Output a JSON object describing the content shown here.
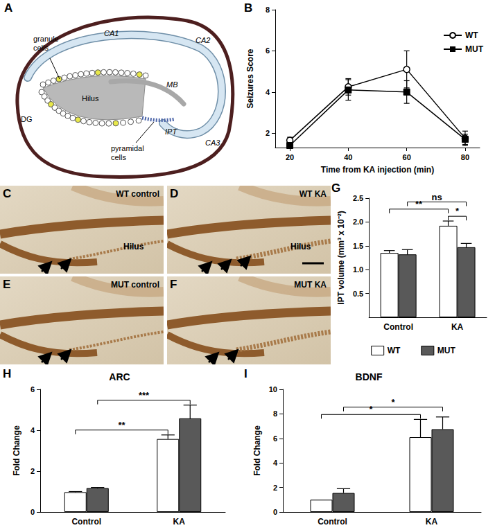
{
  "diagram": {
    "panel": "A",
    "labels": [
      "CA1",
      "CA2",
      "CA3",
      "granule cells",
      "Hilus",
      "MB",
      "DG",
      "IPT",
      "pyramidal cells"
    ]
  },
  "micrographs": [
    {
      "panel": "C",
      "label": "WT control",
      "region": "Hilus"
    },
    {
      "panel": "D",
      "label": "WT KA",
      "region": "Hilus"
    },
    {
      "panel": "E",
      "label": "MUT control"
    },
    {
      "panel": "F",
      "label": "MUT KA"
    }
  ],
  "chart_data": [
    {
      "panel": "B",
      "type": "line",
      "xlabel": "Time from KA injection (min)",
      "ylabel": "Seizures Score",
      "x": [
        20,
        40,
        60,
        80
      ],
      "xlim": [
        15,
        85
      ],
      "xticks": [
        20,
        40,
        60,
        80
      ],
      "ylim": [
        1.3,
        8
      ],
      "yticks": [
        2,
        4,
        6,
        8
      ],
      "grid": false,
      "legend": "top-right",
      "series": [
        {
          "name": "WT",
          "color": "#000000",
          "marker": "circle-open",
          "values": [
            1.65,
            4.25,
            5.1,
            1.75
          ],
          "errors": [
            0.15,
            0.4,
            0.9,
            0.35
          ]
        },
        {
          "name": "MUT",
          "color": "#000000",
          "marker": "square",
          "values": [
            1.4,
            4.1,
            4.0,
            1.7
          ],
          "errors": [
            0.1,
            0.5,
            0.55,
            0.25
          ]
        }
      ]
    },
    {
      "panel": "G",
      "type": "bar",
      "ylabel": "IPT volume (mm³ x 10⁻²)",
      "categories": [
        "Control",
        "KA"
      ],
      "ylim": [
        0,
        2.5
      ],
      "yticks": [
        0.5,
        {
          "value": 1,
          "label": "1.0"
        },
        1.5,
        {
          "value": 2,
          "label": "2.0"
        },
        2.5
      ],
      "grid": false,
      "legend": "bottom",
      "series": [
        {
          "name": "WT",
          "color": "#ffffff",
          "values": [
            1.35,
            1.92
          ],
          "errors": [
            0.05,
            0.1
          ]
        },
        {
          "name": "MUT",
          "color": "#595959",
          "values": [
            1.32,
            1.47
          ],
          "errors": [
            0.1,
            0.08
          ]
        }
      ],
      "annotations": [
        {
          "text": "*",
          "from": {
            "category": "KA",
            "series": 0
          },
          "to": {
            "category": "KA",
            "series": 1
          }
        },
        {
          "text": "**",
          "from": {
            "category": "Control",
            "series": 0
          },
          "to": {
            "category": "KA",
            "series": 0
          }
        },
        {
          "text": "ns",
          "from": {
            "category": "Control",
            "series": 1
          },
          "to": {
            "category": "KA",
            "series": 1
          }
        }
      ]
    },
    {
      "panel": "H",
      "type": "bar",
      "title": "ARC",
      "ylabel": "Fold Change",
      "categories": [
        "Control",
        "KA"
      ],
      "ylim": [
        0,
        6
      ],
      "yticks": [
        0,
        2,
        4,
        6
      ],
      "grid": false,
      "series": [
        {
          "color": "#ffffff",
          "values": [
            0.97,
            3.57
          ],
          "errors": [
            0.03,
            0.2
          ]
        },
        {
          "color": "#595959",
          "values": [
            1.17,
            4.58
          ],
          "errors": [
            0.03,
            0.65
          ]
        }
      ],
      "annotations": [
        {
          "text": "**",
          "from": {
            "category": "Control",
            "series": 0
          },
          "to": {
            "category": "KA",
            "series": 0
          }
        },
        {
          "text": "***",
          "from": {
            "category": "Control",
            "series": 1
          },
          "to": {
            "category": "KA",
            "series": 1
          }
        }
      ]
    },
    {
      "panel": "I",
      "type": "bar",
      "title": "BDNF",
      "ylabel": "Fold Change",
      "categories": [
        "Control",
        "KA"
      ],
      "ylim": [
        0,
        10
      ],
      "yticks": [
        0,
        2,
        4,
        6,
        8,
        10
      ],
      "grid": false,
      "series": [
        {
          "color": "#ffffff",
          "values": [
            1.0,
            6.1
          ],
          "errors": [
            0,
            1.45
          ]
        },
        {
          "color": "#595959",
          "values": [
            1.55,
            6.75
          ],
          "errors": [
            0.35,
            1.0
          ]
        }
      ],
      "annotations": [
        {
          "text": "*",
          "from": {
            "category": "Control",
            "series": 0
          },
          "to": {
            "category": "KA",
            "series": 0
          }
        },
        {
          "text": "*",
          "from": {
            "category": "Control",
            "series": 1
          },
          "to": {
            "category": "KA",
            "series": 1
          }
        }
      ]
    }
  ]
}
